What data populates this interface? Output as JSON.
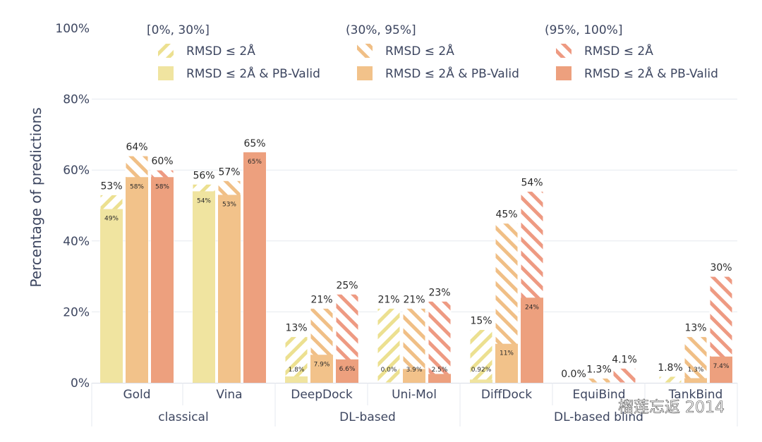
{
  "chart_data": {
    "type": "bar",
    "ylabel": "Percentage of predictions",
    "yticks": [
      "0%",
      "20%",
      "40%",
      "60%",
      "80%",
      "100%"
    ],
    "ylim": [
      0,
      100
    ],
    "grid": true,
    "legend": {
      "placement": "top",
      "groups": [
        {
          "title": "[0%, 30%]",
          "hatched": "RMSD ≤ 2Å",
          "solid": "RMSD ≤ 2Å & PB-Valid",
          "solid_color": "#f0e4a0",
          "hatch_color": "#ece090"
        },
        {
          "title": "(30%, 95%]",
          "hatched": "RMSD ≤ 2Å",
          "solid": "RMSD ≤ 2Å & PB-Valid",
          "solid_color": "#f2c28a",
          "hatch_color": "#f0bf86"
        },
        {
          "title": "(95%, 100%]",
          "hatched": "RMSD ≤ 2Å",
          "solid": "RMSD ≤ 2Å & PB-Valid",
          "solid_color": "#eda07e",
          "hatch_color": "#ee9a82"
        }
      ]
    },
    "groups": [
      {
        "label": "classical",
        "methods": [
          "Gold",
          "Vina"
        ]
      },
      {
        "label": "DL-based",
        "methods": [
          "DeepDock",
          "Uni-Mol"
        ]
      },
      {
        "label": "DL-based blind",
        "methods": [
          "DiffDock",
          "EquiBind",
          "TankBind"
        ]
      }
    ],
    "methods": [
      {
        "name": "Gold",
        "bars": [
          {
            "rmsd": 53,
            "rmsd_label": "53%",
            "pb": 49,
            "pb_label": "49%"
          },
          {
            "rmsd": 64,
            "rmsd_label": "64%",
            "pb": 58,
            "pb_label": "58%"
          },
          {
            "rmsd": 60,
            "rmsd_label": "60%",
            "pb": 58,
            "pb_label": "58%"
          }
        ]
      },
      {
        "name": "Vina",
        "bars": [
          {
            "rmsd": 56,
            "rmsd_label": "56%",
            "pb": 54,
            "pb_label": "54%"
          },
          {
            "rmsd": 57,
            "rmsd_label": "57%",
            "pb": 53,
            "pb_label": "53%"
          },
          {
            "rmsd": 65,
            "rmsd_label": "65%",
            "pb": 65,
            "pb_label": "65%"
          }
        ]
      },
      {
        "name": "DeepDock",
        "bars": [
          {
            "rmsd": 13,
            "rmsd_label": "13%",
            "pb": 1.8,
            "pb_label": "1.8%"
          },
          {
            "rmsd": 21,
            "rmsd_label": "21%",
            "pb": 7.9,
            "pb_label": "7.9%"
          },
          {
            "rmsd": 25,
            "rmsd_label": "25%",
            "pb": 6.6,
            "pb_label": "6.6%"
          }
        ]
      },
      {
        "name": "Uni-Mol",
        "bars": [
          {
            "rmsd": 21,
            "rmsd_label": "21%",
            "pb": 0.0,
            "pb_label": "0.0%"
          },
          {
            "rmsd": 21,
            "rmsd_label": "21%",
            "pb": 3.9,
            "pb_label": "3.9%"
          },
          {
            "rmsd": 23,
            "rmsd_label": "23%",
            "pb": 2.5,
            "pb_label": "2.5%"
          }
        ]
      },
      {
        "name": "DiffDock",
        "bars": [
          {
            "rmsd": 15,
            "rmsd_label": "15%",
            "pb": 0.92,
            "pb_label": "0.92%"
          },
          {
            "rmsd": 45,
            "rmsd_label": "45%",
            "pb": 11,
            "pb_label": "11%"
          },
          {
            "rmsd": 54,
            "rmsd_label": "54%",
            "pb": 24,
            "pb_label": "24%"
          }
        ]
      },
      {
        "name": "EquiBind",
        "bars": [
          {
            "rmsd": 0.0,
            "rmsd_label": "0.0%",
            "pb": 0.0,
            "pb_label": ""
          },
          {
            "rmsd": 1.3,
            "rmsd_label": "1.3%",
            "pb": 0.0,
            "pb_label": ""
          },
          {
            "rmsd": 4.1,
            "rmsd_label": "4.1%",
            "pb": 0.0,
            "pb_label": ""
          }
        ]
      },
      {
        "name": "TankBind",
        "bars": [
          {
            "rmsd": 1.8,
            "rmsd_label": "1.8%",
            "pb": 0.0,
            "pb_label": ""
          },
          {
            "rmsd": 13,
            "rmsd_label": "13%",
            "pb": 1.3,
            "pb_label": "1.3%"
          },
          {
            "rmsd": 30,
            "rmsd_label": "30%",
            "pb": 7.4,
            "pb_label": "7.4%"
          }
        ]
      }
    ]
  },
  "watermark": "榴莲忘返 2014"
}
